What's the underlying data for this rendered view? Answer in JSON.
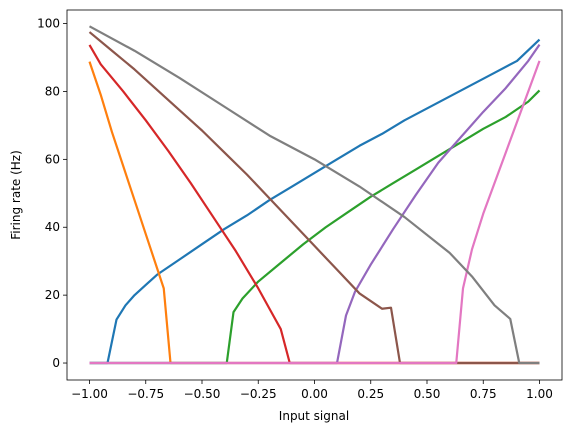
{
  "chart_data": {
    "type": "line",
    "xlabel": "Input signal",
    "ylabel": "Firing rate (Hz)",
    "xlim": [
      -1.1,
      1.1
    ],
    "ylim": [
      -5,
      104
    ],
    "grid": false,
    "x_ticks": [
      -1.0,
      -0.75,
      -0.5,
      -0.25,
      0.0,
      0.25,
      0.5,
      0.75,
      1.0
    ],
    "x_tick_labels": [
      "−1.00",
      "−0.75",
      "−0.50",
      "−0.25",
      "0.00",
      "0.25",
      "0.50",
      "0.75",
      "1.00"
    ],
    "y_ticks": [
      0,
      20,
      40,
      60,
      80,
      100
    ],
    "y_tick_labels": [
      "0",
      "20",
      "40",
      "60",
      "80",
      "100"
    ],
    "series": [
      {
        "color": "#1f77b4",
        "x": [
          -1.0,
          -0.92,
          -0.88,
          -0.84,
          -0.8,
          -0.75,
          -0.7,
          -0.6,
          -0.5,
          -0.4,
          -0.3,
          -0.2,
          -0.1,
          0.0,
          0.1,
          0.2,
          0.3,
          0.4,
          0.5,
          0.6,
          0.7,
          0.8,
          0.9,
          1.0
        ],
        "y": [
          0,
          0,
          12.8,
          17,
          20,
          23,
          26,
          30.5,
          35,
          39.5,
          43.5,
          48,
          52,
          56,
          60,
          64,
          67.5,
          71.5,
          75,
          78.5,
          82,
          85.5,
          89,
          95.3
        ]
      },
      {
        "color": "#ff7f0e",
        "x": [
          -1.0,
          -0.95,
          -0.9,
          -0.85,
          -0.8,
          -0.75,
          -0.7,
          -0.67,
          -0.64,
          1.0
        ],
        "y": [
          88.8,
          79,
          68,
          58,
          48,
          38,
          28,
          22,
          0,
          0
        ]
      },
      {
        "color": "#2ca02c",
        "x": [
          -1.0,
          -0.39,
          -0.36,
          -0.32,
          -0.25,
          -0.15,
          -0.05,
          0.05,
          0.15,
          0.25,
          0.35,
          0.45,
          0.55,
          0.65,
          0.75,
          0.85,
          0.95,
          1.0
        ],
        "y": [
          0,
          0,
          15,
          19,
          24,
          29.5,
          35,
          40,
          44.5,
          49,
          53,
          57,
          61,
          65,
          69,
          72.5,
          77,
          80.3
        ]
      },
      {
        "color": "#d62728",
        "x": [
          -1.0,
          -0.95,
          -0.85,
          -0.75,
          -0.65,
          -0.55,
          -0.45,
          -0.35,
          -0.25,
          -0.2,
          -0.15,
          -0.11,
          1.0
        ],
        "y": [
          93.7,
          88,
          80,
          71.5,
          62.5,
          53,
          43,
          33,
          22,
          16,
          10,
          0,
          0
        ]
      },
      {
        "color": "#9467bd",
        "x": [
          -1.0,
          0.1,
          0.14,
          0.18,
          0.25,
          0.35,
          0.45,
          0.55,
          0.65,
          0.75,
          0.85,
          0.95,
          1.0
        ],
        "y": [
          0,
          0,
          14,
          21,
          29,
          39.5,
          49.5,
          59,
          66.5,
          74,
          81,
          89,
          93.8
        ]
      },
      {
        "color": "#8c564b",
        "x": [
          -1.0,
          -0.9,
          -0.8,
          -0.7,
          -0.6,
          -0.5,
          -0.4,
          -0.3,
          -0.2,
          -0.1,
          0.0,
          0.1,
          0.2,
          0.3,
          0.34,
          0.38,
          1.0
        ],
        "y": [
          97.5,
          92,
          86.5,
          80.5,
          74.5,
          68.5,
          62,
          55.5,
          48.5,
          41.5,
          34.5,
          27.5,
          20.5,
          16,
          16.3,
          0,
          0
        ]
      },
      {
        "color": "#e377c2",
        "x": [
          -1.0,
          0.63,
          0.66,
          0.7,
          0.75,
          0.8,
          0.85,
          0.9,
          0.95,
          1.0
        ],
        "y": [
          0,
          0,
          22,
          33.5,
          44,
          53,
          62,
          71,
          80,
          89
        ]
      },
      {
        "color": "#7f7f7f",
        "x": [
          -1.0,
          -0.8,
          -0.6,
          -0.4,
          -0.2,
          0.0,
          0.2,
          0.4,
          0.6,
          0.7,
          0.8,
          0.87,
          0.91,
          1.0
        ],
        "y": [
          99.2,
          92,
          84,
          75.5,
          67,
          60,
          52,
          43,
          32.5,
          25.5,
          17,
          13,
          0,
          0
        ]
      }
    ]
  }
}
